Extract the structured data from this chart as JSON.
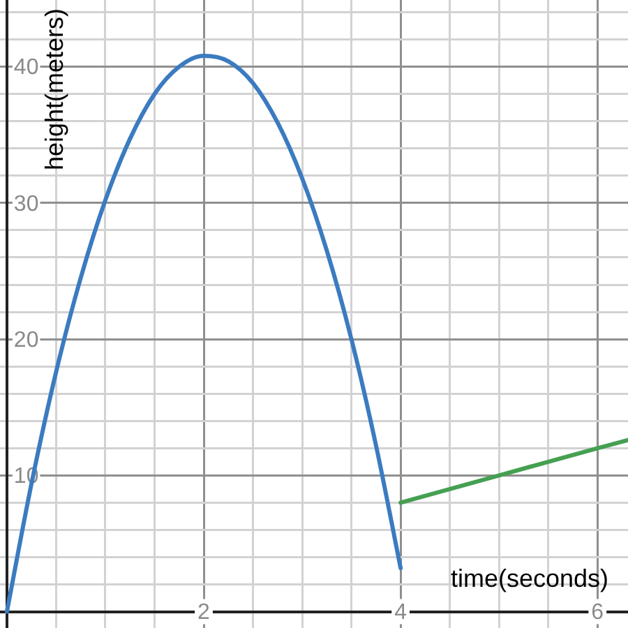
{
  "chart_data": {
    "type": "line",
    "xlabel": "time(seconds)",
    "ylabel": "height(meters)",
    "xlim": [
      -0.07,
      6.31
    ],
    "ylim": [
      -1.2,
      44.9
    ],
    "xticks": [
      {
        "value": 0,
        "label": null
      },
      {
        "value": 0.5,
        "label": null
      },
      {
        "value": 1,
        "label": null
      },
      {
        "value": 1.5,
        "label": null
      },
      2,
      {
        "value": 2.5,
        "label": null
      },
      {
        "value": 3,
        "label": null
      },
      {
        "value": 3.5,
        "label": null
      },
      4,
      {
        "value": 4.5,
        "label": null
      },
      {
        "value": 5,
        "label": null
      },
      {
        "value": 5.5,
        "label": null
      },
      6
    ],
    "yticks": [
      {
        "value": 0,
        "label": null
      },
      {
        "value": 2,
        "label": null
      },
      {
        "value": 4,
        "label": null
      },
      {
        "value": 6,
        "label": null
      },
      {
        "value": 8,
        "label": null
      },
      10,
      {
        "value": 12,
        "label": null
      },
      {
        "value": 14,
        "label": null
      },
      {
        "value": 16,
        "label": null
      },
      {
        "value": 18,
        "label": null
      },
      20,
      {
        "value": 22,
        "label": null
      },
      {
        "value": 24,
        "label": null
      },
      {
        "value": 26,
        "label": null
      },
      {
        "value": 28,
        "label": null
      },
      30,
      {
        "value": 32,
        "label": null
      },
      {
        "value": 34,
        "label": null
      },
      {
        "value": 36,
        "label": null
      },
      {
        "value": 38,
        "label": null
      },
      40,
      {
        "value": 42,
        "label": null
      },
      {
        "value": 44,
        "label": null
      }
    ],
    "grid": true,
    "marker": "none",
    "line_style": "solid",
    "series": [
      {
        "color": "#3b7bc0",
        "x": [
          0,
          0.25,
          0.5,
          0.75,
          1,
          1.25,
          1.5,
          1.75,
          2,
          2.25,
          2.5,
          2.75,
          3,
          3.25,
          3.5,
          3.75,
          4
        ],
        "values": [
          0,
          9.4,
          17.6,
          24.5,
          30.2,
          34.7,
          38,
          40,
          40.8,
          40.4,
          38.8,
          35.9,
          31.8,
          26.5,
          20,
          12.2,
          3.2
        ]
      },
      {
        "color": "#45a052",
        "x": [
          4,
          5,
          6,
          6.31
        ],
        "values": [
          8,
          10,
          12,
          12.6
        ]
      }
    ]
  }
}
